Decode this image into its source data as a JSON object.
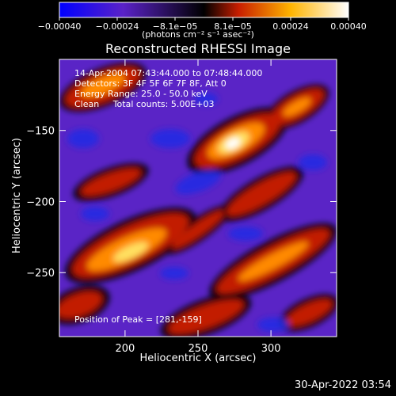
{
  "chart_data": {
    "type": "heatmap",
    "title": "Reconstructed RHESSI Image",
    "xlabel": "Heliocentric X (arcsec)",
    "ylabel": "Heliocentric Y (arcsec)",
    "xlim": [
      155,
      345
    ],
    "ylim": [
      -295,
      -100
    ],
    "x_ticks": [
      200,
      250,
      300
    ],
    "y_ticks": [
      -150,
      -200,
      -250
    ],
    "colorbar": {
      "unit": "(photons cm⁻² s⁻¹ asec⁻²)",
      "range": [
        -0.0004,
        0.0004
      ],
      "tick_labels": [
        "−0.00040",
        "−0.00024",
        "−8.1e−05",
        "8.1e−05",
        "0.00024",
        "0.00040"
      ]
    },
    "annotations": [
      "14-Apr-2004 07:43:44.000 to 07:48:44.000",
      "Detectors: 3F 4F 5F 6F 7F 8F, Att 0",
      "Energy Range: 25.0 - 50.0 keV",
      "Clean     Total counts: 5.00E+03"
    ],
    "peak_label": "Position of Peak = [281,-159]",
    "peak": [
      281,
      -159
    ],
    "colormap": [
      "#0000ff",
      "#5a22c8",
      "#000000",
      "#c81e00",
      "#ffb400",
      "#ffffff"
    ]
  },
  "footer_timestamp": "30-Apr-2022 03:54"
}
